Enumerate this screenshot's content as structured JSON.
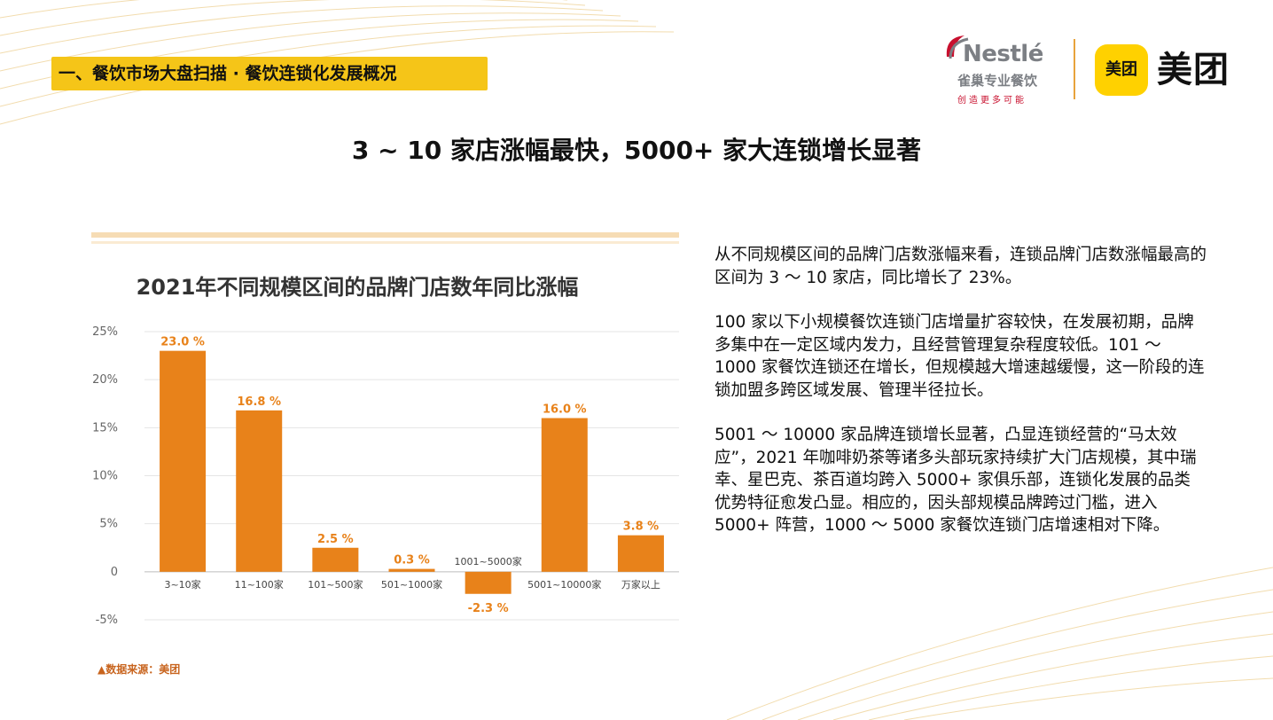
{
  "section": {
    "label": "一、餐饮市场大盘扫描 · 餐饮连锁化发展概况"
  },
  "logos": {
    "nestle_word": "Nestlé",
    "nestle_cn": "雀巢专业餐饮",
    "nestle_slogan": "创造更多可能",
    "meituan_badge": "美团",
    "meituan_word": "美团"
  },
  "title": "3 ~ 10 家店涨幅最快，5000+ 家大连锁增长显著",
  "chart_data": {
    "type": "bar",
    "title": "2021年不同规模区间的品牌门店数年同比涨幅",
    "categories": [
      "3~10家",
      "11~100家",
      "101~500家",
      "501~1000家",
      "1001~5000家",
      "5001~10000家",
      "万家以上"
    ],
    "values": [
      23.0,
      16.8,
      2.5,
      0.3,
      -2.3,
      16.0,
      3.8
    ],
    "data_labels": [
      "23.0 %",
      "16.8 %",
      "2.5 %",
      "0.3 %",
      "-2.3 %",
      "16.0 %",
      "3.8 %"
    ],
    "ylim": [
      -5,
      25
    ],
    "yticks": [
      25,
      20,
      15,
      10,
      5,
      0,
      -5
    ],
    "ytick_labels": [
      "25%",
      "20%",
      "15%",
      "10%",
      "5%",
      "0",
      "-5%"
    ],
    "xlabel": "",
    "ylabel": "",
    "grid": true,
    "legend": "none",
    "bar_color": "#e8821a"
  },
  "source": "▲数据来源：美团",
  "paragraphs": [
    "从不同规模区间的品牌门店数涨幅来看，连锁品牌门店数涨幅最高的区间为 3 ～ 10 家店，同比增长了 23%。",
    "100 家以下小规模餐饮连锁门店增量扩容较快，在发展初期，品牌多集中在一定区域内发力，且经营管理复杂程度较低。101 ～ 1000 家餐饮连锁还在增长，但规模越大增速越缓慢，这一阶段的连锁加盟多跨区域发展、管理半径拉长。",
    "5001 ～ 10000 家品牌连锁增长显著，凸显连锁经营的“马太效应”，2021 年咖啡奶茶等诸多头部玩家持续扩大门店规模，其中瑞幸、星巴克、茶百道均跨入 5000+ 家俱乐部，连锁化发展的品类优势特征愈发凸显。相应的，因头部规模品牌跨过门槛，进入5000+ 阵营，1000 ～ 5000 家餐饮连锁门店增速相对下降。"
  ]
}
